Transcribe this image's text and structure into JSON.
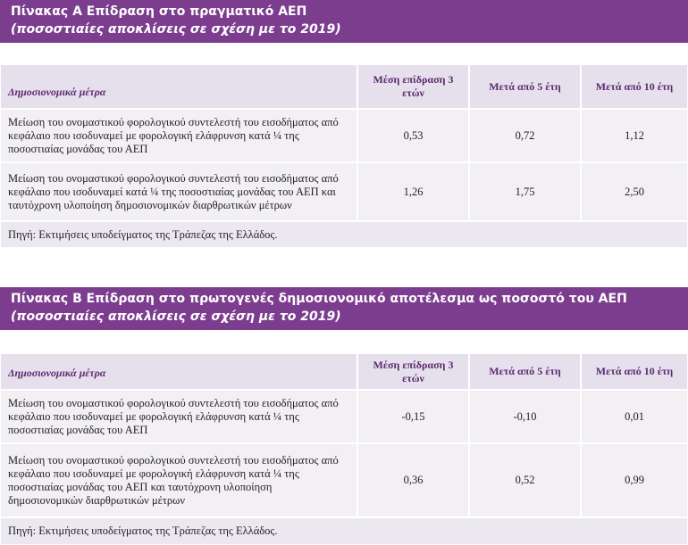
{
  "tables": [
    {
      "title": "Πίνακας Α Επίδραση στο πραγματικό ΑΕΠ",
      "subtitle": "(ποσοστιαίες αποκλίσεις σε σχέση με το 2019)",
      "columns": [
        "Δημοσιονομικά μέτρα",
        "Μέση επίδραση 3 ετών",
        "Μετά από 5 έτη",
        "Μετά από 10 έτη"
      ],
      "rows": [
        [
          "Μείωση του ονομαστικού φορολογικού συντελεστή του εισοδήματος από κεφάλαιο που ισοδυναμεί με φορολογική ελάφρυνση κατά ¼ της ποσοστιαίας μονάδας του ΑΕΠ",
          "0,53",
          "0,72",
          "1,12"
        ],
        [
          "Μείωση του ονομαστικού φορολογικού συντελεστή του εισοδήματος από κεφάλαιο που ισοδυναμεί κατά ¼ της ποσοστιαίας μονάδας του ΑΕΠ και ταυτόχρονη υλοποίηση δημοσιονομικών διαρθρωτικών μέτρων",
          "1,26",
          "1,75",
          "2,50"
        ]
      ],
      "source": "Πηγή: Εκτιμήσεις υποδείγματος της Τράπεζας της Ελλάδος."
    },
    {
      "title": "Πίνακας Β Επίδραση στο πρωτογενές δημοσιονομικό αποτέλεσμα ως ποσοστό του ΑΕΠ",
      "subtitle": "(ποσοστιαίες αποκλίσεις σε σχέση με το 2019)",
      "columns": [
        "Δημοσιονομικά μέτρα",
        "Μέση επίδραση 3 ετών",
        "Μετά από 5 έτη",
        "Μετά από 10 έτη"
      ],
      "rows": [
        [
          "Μείωση του ονομαστικού φορολογικού συντελεστή του εισοδήματος από κεφάλαιο που ισοδυναμεί με φορολογική ελάφρυνση κατά ¼ της ποσοστιαίας μονάδας του ΑΕΠ",
          "-0,15",
          "-0,10",
          "0,01"
        ],
        [
          "Μείωση του ονομαστικού φορολογικού συντελεστή του εισοδήματος από κεφάλαιο που ισοδυναμεί με φορολογική ελάφρυνση κατά ¼ της ποσοστιαίας μονάδας του ΑΕΠ και ταυτόχρονη υλοποίηση δημοσιονομικών διαρθρωτικών μέτρων",
          "0,36",
          "0,52",
          "0,99"
        ]
      ],
      "source": "Πηγή: Εκτιμήσεις υποδείγματος της Τράπεζας της Ελλάδος."
    }
  ]
}
